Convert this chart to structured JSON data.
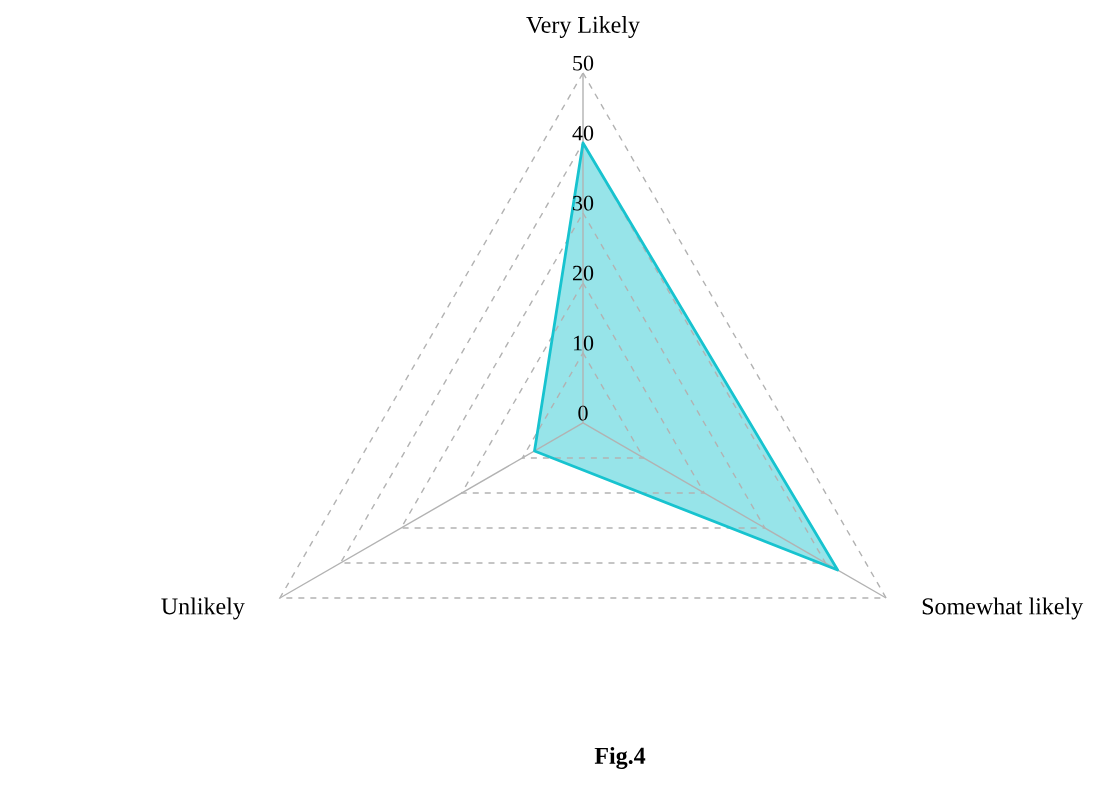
{
  "chart_data": {
    "type": "radar",
    "categories": [
      "Very Likely",
      "Somewhat likely",
      "Unlikely"
    ],
    "series": [
      {
        "color": "#17c3cf",
        "values": [
          40,
          42,
          8
        ]
      }
    ],
    "ylim": [
      0,
      50
    ],
    "yticks": [
      0,
      10,
      20,
      30,
      40,
      50
    ],
    "grid": true,
    "annotations": [
      "Fig.4"
    ]
  }
}
